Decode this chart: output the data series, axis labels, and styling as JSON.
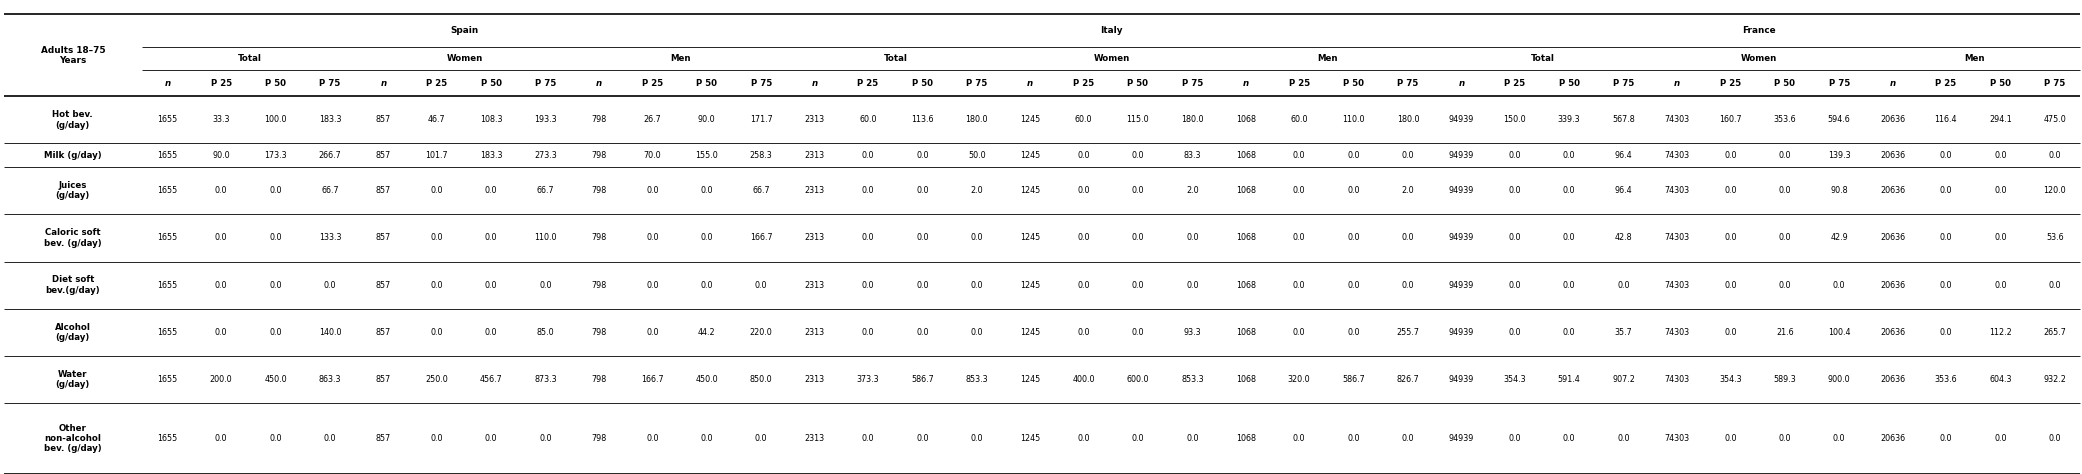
{
  "row_labels": [
    "Hot bev.\n(g/day)",
    "Milk (g/day)",
    "Juices\n(g/day)",
    "Caloric soft\nbev. (g/day)",
    "Diet soft\nbev.(g/day)",
    "Alcohol\n(g/day)",
    "Water\n(g/day)",
    "Other\nnon-alcohol\nbev. (g/day)"
  ],
  "countries": [
    "Spain",
    "Italy",
    "France"
  ],
  "groups": [
    "Total",
    "Women",
    "Men"
  ],
  "sub_cols": [
    "n",
    "P 25",
    "P 50",
    "P 75"
  ],
  "data": [
    [
      [
        1655,
        33.3,
        100.0,
        183.3
      ],
      [
        857,
        46.7,
        108.3,
        193.3
      ],
      [
        798,
        26.7,
        90.0,
        171.7
      ],
      [
        2313,
        60.0,
        113.6,
        180.0
      ],
      [
        1245,
        60.0,
        115.0,
        180.0
      ],
      [
        1068,
        60.0,
        110.0,
        180.0
      ],
      [
        94939,
        150.0,
        339.3,
        567.8
      ],
      [
        74303,
        160.7,
        353.6,
        594.6
      ],
      [
        20636,
        116.4,
        294.1,
        475.0
      ]
    ],
    [
      [
        1655,
        90.0,
        173.3,
        266.7
      ],
      [
        857,
        101.7,
        183.3,
        273.3
      ],
      [
        798,
        70.0,
        155.0,
        258.3
      ],
      [
        2313,
        0.0,
        0.0,
        50.0
      ],
      [
        1245,
        0.0,
        0.0,
        83.3
      ],
      [
        1068,
        0.0,
        0.0,
        0.0
      ],
      [
        94939,
        0.0,
        0.0,
        96.4
      ],
      [
        74303,
        0.0,
        0.0,
        139.3
      ],
      [
        20636,
        0.0,
        0.0,
        0.0
      ]
    ],
    [
      [
        1655,
        0.0,
        0.0,
        66.7
      ],
      [
        857,
        0.0,
        0.0,
        66.7
      ],
      [
        798,
        0.0,
        0.0,
        66.7
      ],
      [
        2313,
        0.0,
        0.0,
        2.0
      ],
      [
        1245,
        0.0,
        0.0,
        2.0
      ],
      [
        1068,
        0.0,
        0.0,
        2.0
      ],
      [
        94939,
        0.0,
        0.0,
        96.4
      ],
      [
        74303,
        0.0,
        0.0,
        90.8
      ],
      [
        20636,
        0.0,
        0.0,
        120.0
      ]
    ],
    [
      [
        1655,
        0.0,
        0.0,
        133.3
      ],
      [
        857,
        0.0,
        0.0,
        110.0
      ],
      [
        798,
        0.0,
        0.0,
        166.7
      ],
      [
        2313,
        0.0,
        0.0,
        0.0
      ],
      [
        1245,
        0.0,
        0.0,
        0.0
      ],
      [
        1068,
        0.0,
        0.0,
        0.0
      ],
      [
        94939,
        0.0,
        0.0,
        42.8
      ],
      [
        74303,
        0.0,
        0.0,
        42.9
      ],
      [
        20636,
        0.0,
        0.0,
        53.6
      ]
    ],
    [
      [
        1655,
        0.0,
        0.0,
        0.0
      ],
      [
        857,
        0.0,
        0.0,
        0.0
      ],
      [
        798,
        0.0,
        0.0,
        0.0
      ],
      [
        2313,
        0.0,
        0.0,
        0.0
      ],
      [
        1245,
        0.0,
        0.0,
        0.0
      ],
      [
        1068,
        0.0,
        0.0,
        0.0
      ],
      [
        94939,
        0.0,
        0.0,
        0.0
      ],
      [
        74303,
        0.0,
        0.0,
        0.0
      ],
      [
        20636,
        0.0,
        0.0,
        0.0
      ]
    ],
    [
      [
        1655,
        0.0,
        0.0,
        140.0
      ],
      [
        857,
        0.0,
        0.0,
        85.0
      ],
      [
        798,
        0.0,
        44.2,
        220.0
      ],
      [
        2313,
        0.0,
        0.0,
        0.0
      ],
      [
        1245,
        0.0,
        0.0,
        93.3
      ],
      [
        1068,
        0.0,
        0.0,
        255.7
      ],
      [
        94939,
        0.0,
        0.0,
        35.7
      ],
      [
        74303,
        0.0,
        21.6,
        100.4
      ],
      [
        20636,
        0.0,
        112.2,
        265.7
      ]
    ],
    [
      [
        1655,
        200.0,
        450.0,
        863.3
      ],
      [
        857,
        250.0,
        456.7,
        873.3
      ],
      [
        798,
        166.7,
        450.0,
        850.0
      ],
      [
        2313,
        373.3,
        586.7,
        853.3
      ],
      [
        1245,
        400.0,
        600.0,
        853.3
      ],
      [
        1068,
        320.0,
        586.7,
        826.7
      ],
      [
        94939,
        354.3,
        591.4,
        907.2
      ],
      [
        74303,
        354.3,
        589.3,
        900.0
      ],
      [
        20636,
        353.6,
        604.3,
        932.2
      ]
    ],
    [
      [
        1655,
        0.0,
        0.0,
        0.0
      ],
      [
        857,
        0.0,
        0.0,
        0.0
      ],
      [
        798,
        0.0,
        0.0,
        0.0
      ],
      [
        2313,
        0.0,
        0.0,
        0.0
      ],
      [
        1245,
        0.0,
        0.0,
        0.0
      ],
      [
        1068,
        0.0,
        0.0,
        0.0
      ],
      [
        94939,
        0.0,
        0.0,
        0.0
      ],
      [
        74303,
        0.0,
        0.0,
        0.0
      ],
      [
        20636,
        0.0,
        0.0,
        0.0
      ]
    ]
  ],
  "font_size": 5.8,
  "header_font_size": 6.2,
  "bold_font_size": 6.4
}
